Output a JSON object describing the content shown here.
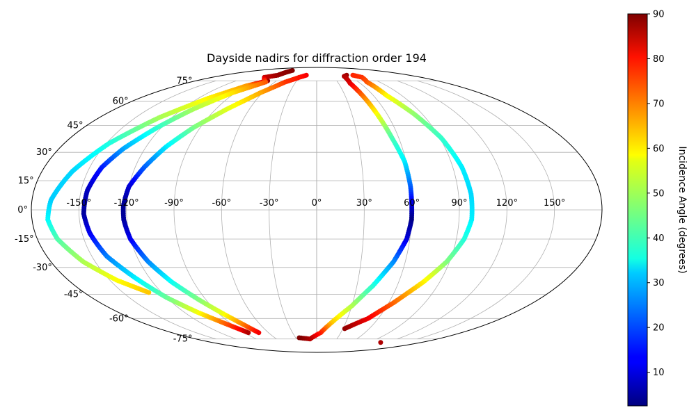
{
  "chart_data": {
    "type": "scatter",
    "projection": "mollweide",
    "title": "Dayside nadirs for diffraction order 194",
    "xlabel": "",
    "ylabel": "",
    "xlim": [
      -180,
      180
    ],
    "ylim": [
      -90,
      90
    ],
    "grid": true,
    "lon_ticks": [
      -150,
      -120,
      -90,
      -60,
      -30,
      0,
      30,
      60,
      90,
      120,
      150
    ],
    "lon_tick_labels": [
      "-150°",
      "-120°",
      "-90°",
      "-60°",
      "-30°",
      "0°",
      "30°",
      "60°",
      "90°",
      "120°",
      "150°"
    ],
    "lat_ticks": [
      75,
      60,
      45,
      30,
      15,
      0,
      -15,
      -30,
      -45,
      -60,
      -75
    ],
    "lat_tick_labels": [
      "75°",
      "60°",
      "45°",
      "30°",
      "15°",
      "0°",
      "-15°",
      "-30°",
      "-45°",
      "-60°",
      "-75°"
    ],
    "colorbar": {
      "label": "Incidence Angle (degrees)",
      "colormap": "jet",
      "range": [
        2.5,
        90
      ],
      "ticks": [
        10,
        20,
        30,
        40,
        50,
        60,
        70,
        80,
        90
      ],
      "tick_labels": [
        "10",
        "20",
        "30",
        "40",
        "50",
        "60",
        "70",
        "80",
        "90"
      ]
    },
    "series": [
      {
        "points": [
          {
            "lon": -73,
            "lat": 75,
            "inc": 88
          },
          {
            "lon": -90,
            "lat": 71,
            "inc": 66
          },
          {
            "lon": -110,
            "lat": 62,
            "inc": 58
          },
          {
            "lon": -130,
            "lat": 50,
            "inc": 50
          },
          {
            "lon": -148,
            "lat": 35,
            "inc": 38
          },
          {
            "lon": -160,
            "lat": 20,
            "inc": 32
          },
          {
            "lon": -168,
            "lat": 5,
            "inc": 31
          },
          {
            "lon": -170,
            "lat": -5,
            "inc": 35
          },
          {
            "lon": -167,
            "lat": -15,
            "inc": 42
          },
          {
            "lon": -158,
            "lat": -27,
            "inc": 50
          },
          {
            "lon": -145,
            "lat": -37,
            "inc": 57
          },
          {
            "lon": -130,
            "lat": -44,
            "inc": 62
          }
        ]
      },
      {
        "points": [
          {
            "lon": -74,
            "lat": 85,
            "inc": 90
          },
          {
            "lon": -75,
            "lat": 80,
            "inc": 88
          },
          {
            "lon": -90,
            "lat": 78,
            "inc": 84
          },
          {
            "lon": -73,
            "lat": 74,
            "inc": 72
          },
          {
            "lon": -93,
            "lat": 66,
            "inc": 60
          },
          {
            "lon": -110,
            "lat": 55,
            "inc": 50
          },
          {
            "lon": -123,
            "lat": 44,
            "inc": 40
          },
          {
            "lon": -135,
            "lat": 32,
            "inc": 28
          },
          {
            "lon": -142,
            "lat": 22,
            "inc": 16
          },
          {
            "lon": -146,
            "lat": 10,
            "inc": 8
          },
          {
            "lon": -147,
            "lat": -2,
            "inc": 5
          },
          {
            "lon": -145,
            "lat": -12,
            "inc": 12
          },
          {
            "lon": -140,
            "lat": -24,
            "inc": 24
          },
          {
            "lon": -130,
            "lat": -36,
            "inc": 34
          },
          {
            "lon": -120,
            "lat": -47,
            "inc": 44
          },
          {
            "lon": -108,
            "lat": -56,
            "inc": 56
          },
          {
            "lon": -98,
            "lat": -62,
            "inc": 68
          },
          {
            "lon": -88,
            "lat": -68,
            "inc": 80
          },
          {
            "lon": -85,
            "lat": -70,
            "inc": 86
          }
        ]
      },
      {
        "points": [
          {
            "lon": -20,
            "lat": 80,
            "inc": 80
          },
          {
            "lon": -30,
            "lat": 78,
            "inc": 78
          },
          {
            "lon": -45,
            "lat": 74,
            "inc": 75
          },
          {
            "lon": -62,
            "lat": 66,
            "inc": 65
          },
          {
            "lon": -80,
            "lat": 55,
            "inc": 55
          },
          {
            "lon": -95,
            "lat": 44,
            "inc": 46
          },
          {
            "lon": -106,
            "lat": 33,
            "inc": 34
          },
          {
            "lon": -114,
            "lat": 22,
            "inc": 22
          },
          {
            "lon": -120,
            "lat": 12,
            "inc": 10
          },
          {
            "lon": -122,
            "lat": 2,
            "inc": 4
          },
          {
            "lon": -122,
            "lat": -5,
            "inc": 5
          },
          {
            "lon": -120,
            "lat": -15,
            "inc": 12
          },
          {
            "lon": -114,
            "lat": -27,
            "inc": 25
          },
          {
            "lon": -106,
            "lat": -38,
            "inc": 36
          },
          {
            "lon": -96,
            "lat": -48,
            "inc": 46
          },
          {
            "lon": -86,
            "lat": -57,
            "inc": 56
          },
          {
            "lon": -78,
            "lat": -64,
            "inc": 68
          },
          {
            "lon": -72,
            "lat": -70,
            "inc": 80
          }
        ]
      },
      {
        "points": [
          {
            "lon": 58,
            "lat": 80,
            "inc": 88
          },
          {
            "lon": 50,
            "lat": 79,
            "inc": 86
          },
          {
            "lon": 46,
            "lat": 73,
            "inc": 82
          },
          {
            "lon": 49,
            "lat": 62,
            "inc": 68
          },
          {
            "lon": 52,
            "lat": 50,
            "inc": 55
          },
          {
            "lon": 55,
            "lat": 38,
            "inc": 42
          },
          {
            "lon": 59,
            "lat": 25,
            "inc": 34
          },
          {
            "lon": 60,
            "lat": 12,
            "inc": 22
          },
          {
            "lon": 60,
            "lat": 2,
            "inc": 10
          },
          {
            "lon": 60,
            "lat": -5,
            "inc": 3
          },
          {
            "lon": 58,
            "lat": -15,
            "inc": 10
          },
          {
            "lon": 52,
            "lat": -27,
            "inc": 25
          },
          {
            "lon": 42,
            "lat": -40,
            "inc": 38
          },
          {
            "lon": 30,
            "lat": -52,
            "inc": 50
          },
          {
            "lon": 15,
            "lat": -63,
            "inc": 62
          },
          {
            "lon": 5,
            "lat": -70,
            "inc": 76
          },
          {
            "lon": -10,
            "lat": -75,
            "inc": 85
          },
          {
            "lon": -25,
            "lat": -74,
            "inc": 90
          }
        ]
      },
      {
        "points": [
          {
            "lon": 70,
            "lat": 80,
            "inc": 76
          },
          {
            "lon": 78,
            "lat": 78,
            "inc": 75
          },
          {
            "lon": 72,
            "lat": 74,
            "inc": 72
          },
          {
            "lon": 74,
            "lat": 64,
            "inc": 58
          },
          {
            "lon": 83,
            "lat": 52,
            "inc": 48
          },
          {
            "lon": 91,
            "lat": 38,
            "inc": 40
          },
          {
            "lon": 96,
            "lat": 22,
            "inc": 34
          },
          {
            "lon": 98,
            "lat": 8,
            "inc": 32
          },
          {
            "lon": 98,
            "lat": -5,
            "inc": 34
          },
          {
            "lon": 95,
            "lat": -15,
            "inc": 38
          },
          {
            "lon": 88,
            "lat": -27,
            "inc": 46
          },
          {
            "lon": 78,
            "lat": -38,
            "inc": 58
          },
          {
            "lon": 64,
            "lat": -50,
            "inc": 70
          },
          {
            "lon": 50,
            "lat": -60,
            "inc": 80
          },
          {
            "lon": 32,
            "lat": -67,
            "inc": 88
          }
        ]
      },
      {
        "points": [
          {
            "lon": 110,
            "lat": -78,
            "inc": 86
          }
        ]
      }
    ]
  }
}
